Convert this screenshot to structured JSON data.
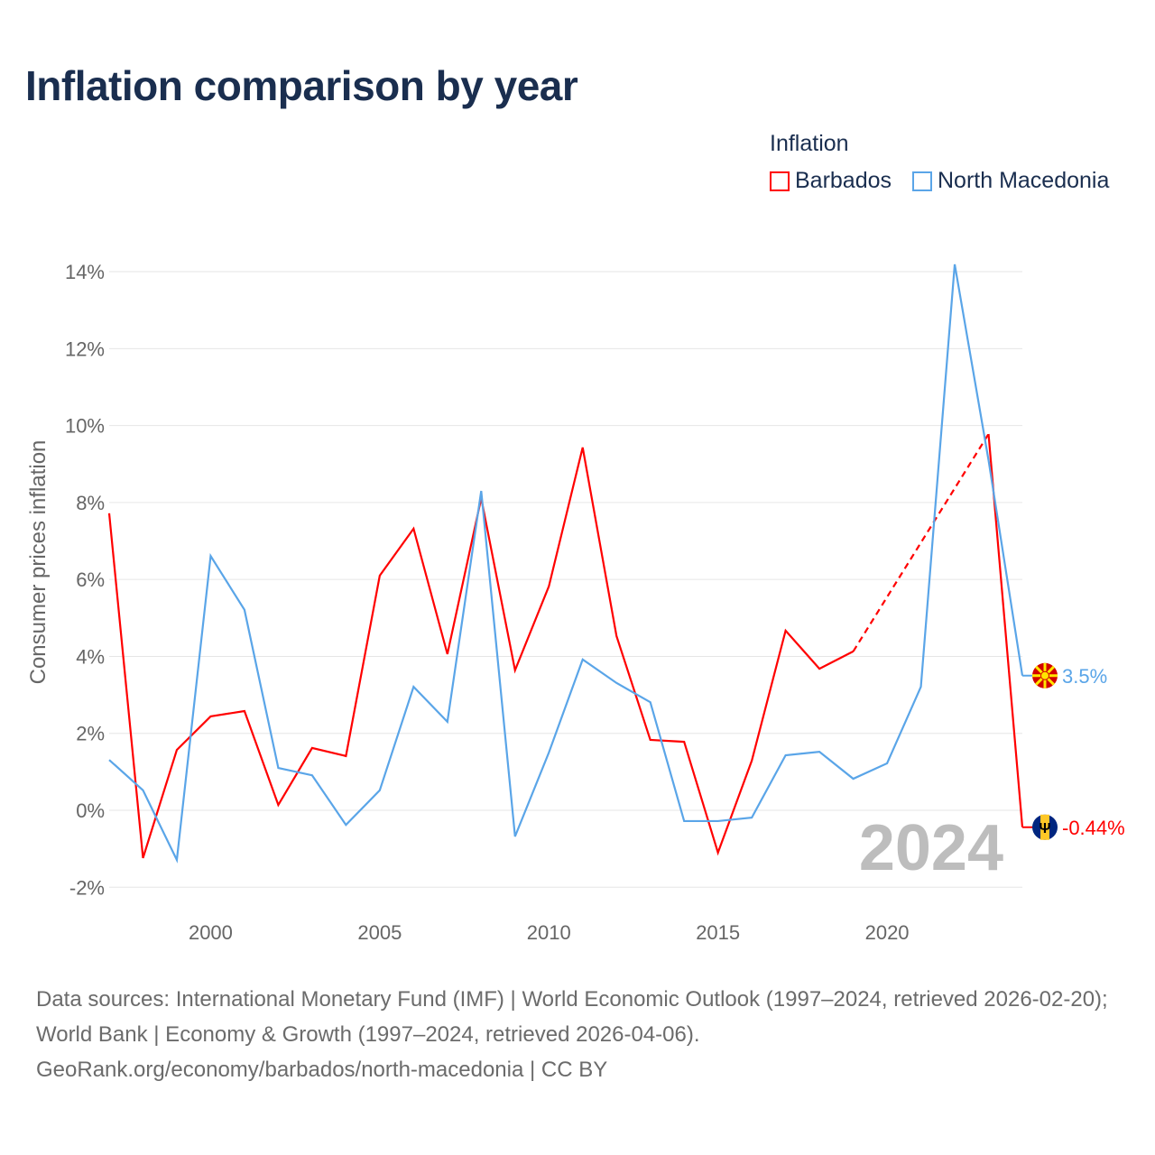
{
  "title": "Inflation comparison by year",
  "legend": {
    "title": "Inflation",
    "items": [
      "Barbados",
      "North Macedonia"
    ]
  },
  "year_label": "2024",
  "source_lines": [
    "Data sources: International Monetary Fund (IMF) | World Economic Outlook (1997–2024, retrieved 2026-02-20); World Bank | Economy & Growth (1997–2024, retrieved 2026-04-06).",
    "GeoRank.org/economy/barbados/north-macedonia | CC BY"
  ],
  "chart_data": {
    "type": "line",
    "title": "Inflation comparison by year",
    "xlabel": "",
    "ylabel": "Consumer prices inflation",
    "xlim": [
      1997,
      2024
    ],
    "ylim": [
      -2,
      14
    ],
    "x_ticks": [
      2000,
      2005,
      2010,
      2015,
      2020
    ],
    "y_ticks": [
      -2,
      0,
      2,
      4,
      6,
      8,
      10,
      12,
      14
    ],
    "y_tick_labels": [
      "-2%",
      "0%",
      "2%",
      "4%",
      "6%",
      "8%",
      "10%",
      "12%",
      "14%"
    ],
    "grid": true,
    "legend_position": "top-right",
    "x": [
      1997,
      1998,
      1999,
      2000,
      2001,
      2002,
      2003,
      2004,
      2005,
      2006,
      2007,
      2008,
      2009,
      2010,
      2011,
      2012,
      2013,
      2014,
      2015,
      2016,
      2017,
      2018,
      2019,
      2020,
      2021,
      2022,
      2023,
      2024
    ],
    "series": [
      {
        "name": "Barbados",
        "color": "#ff0000",
        "end_label": "-0.44%",
        "values": [
          7.72,
          -1.24,
          1.57,
          2.44,
          2.58,
          0.14,
          1.62,
          1.41,
          6.1,
          7.32,
          4.06,
          8.11,
          3.64,
          5.82,
          9.43,
          4.53,
          1.83,
          1.78,
          -1.1,
          1.29,
          4.67,
          3.68,
          4.13,
          null,
          null,
          null,
          9.78,
          -0.44
        ]
      },
      {
        "name": "North Macedonia",
        "color": "#5aa5e8",
        "end_label": "3.5%",
        "values": [
          1.31,
          0.52,
          -1.29,
          6.61,
          5.21,
          1.1,
          0.91,
          -0.38,
          0.52,
          3.21,
          2.3,
          8.3,
          -0.68,
          1.5,
          3.92,
          3.31,
          2.81,
          -0.28,
          -0.28,
          -0.19,
          1.43,
          1.52,
          0.82,
          1.22,
          3.21,
          14.19,
          9.1,
          3.5
        ]
      }
    ]
  }
}
